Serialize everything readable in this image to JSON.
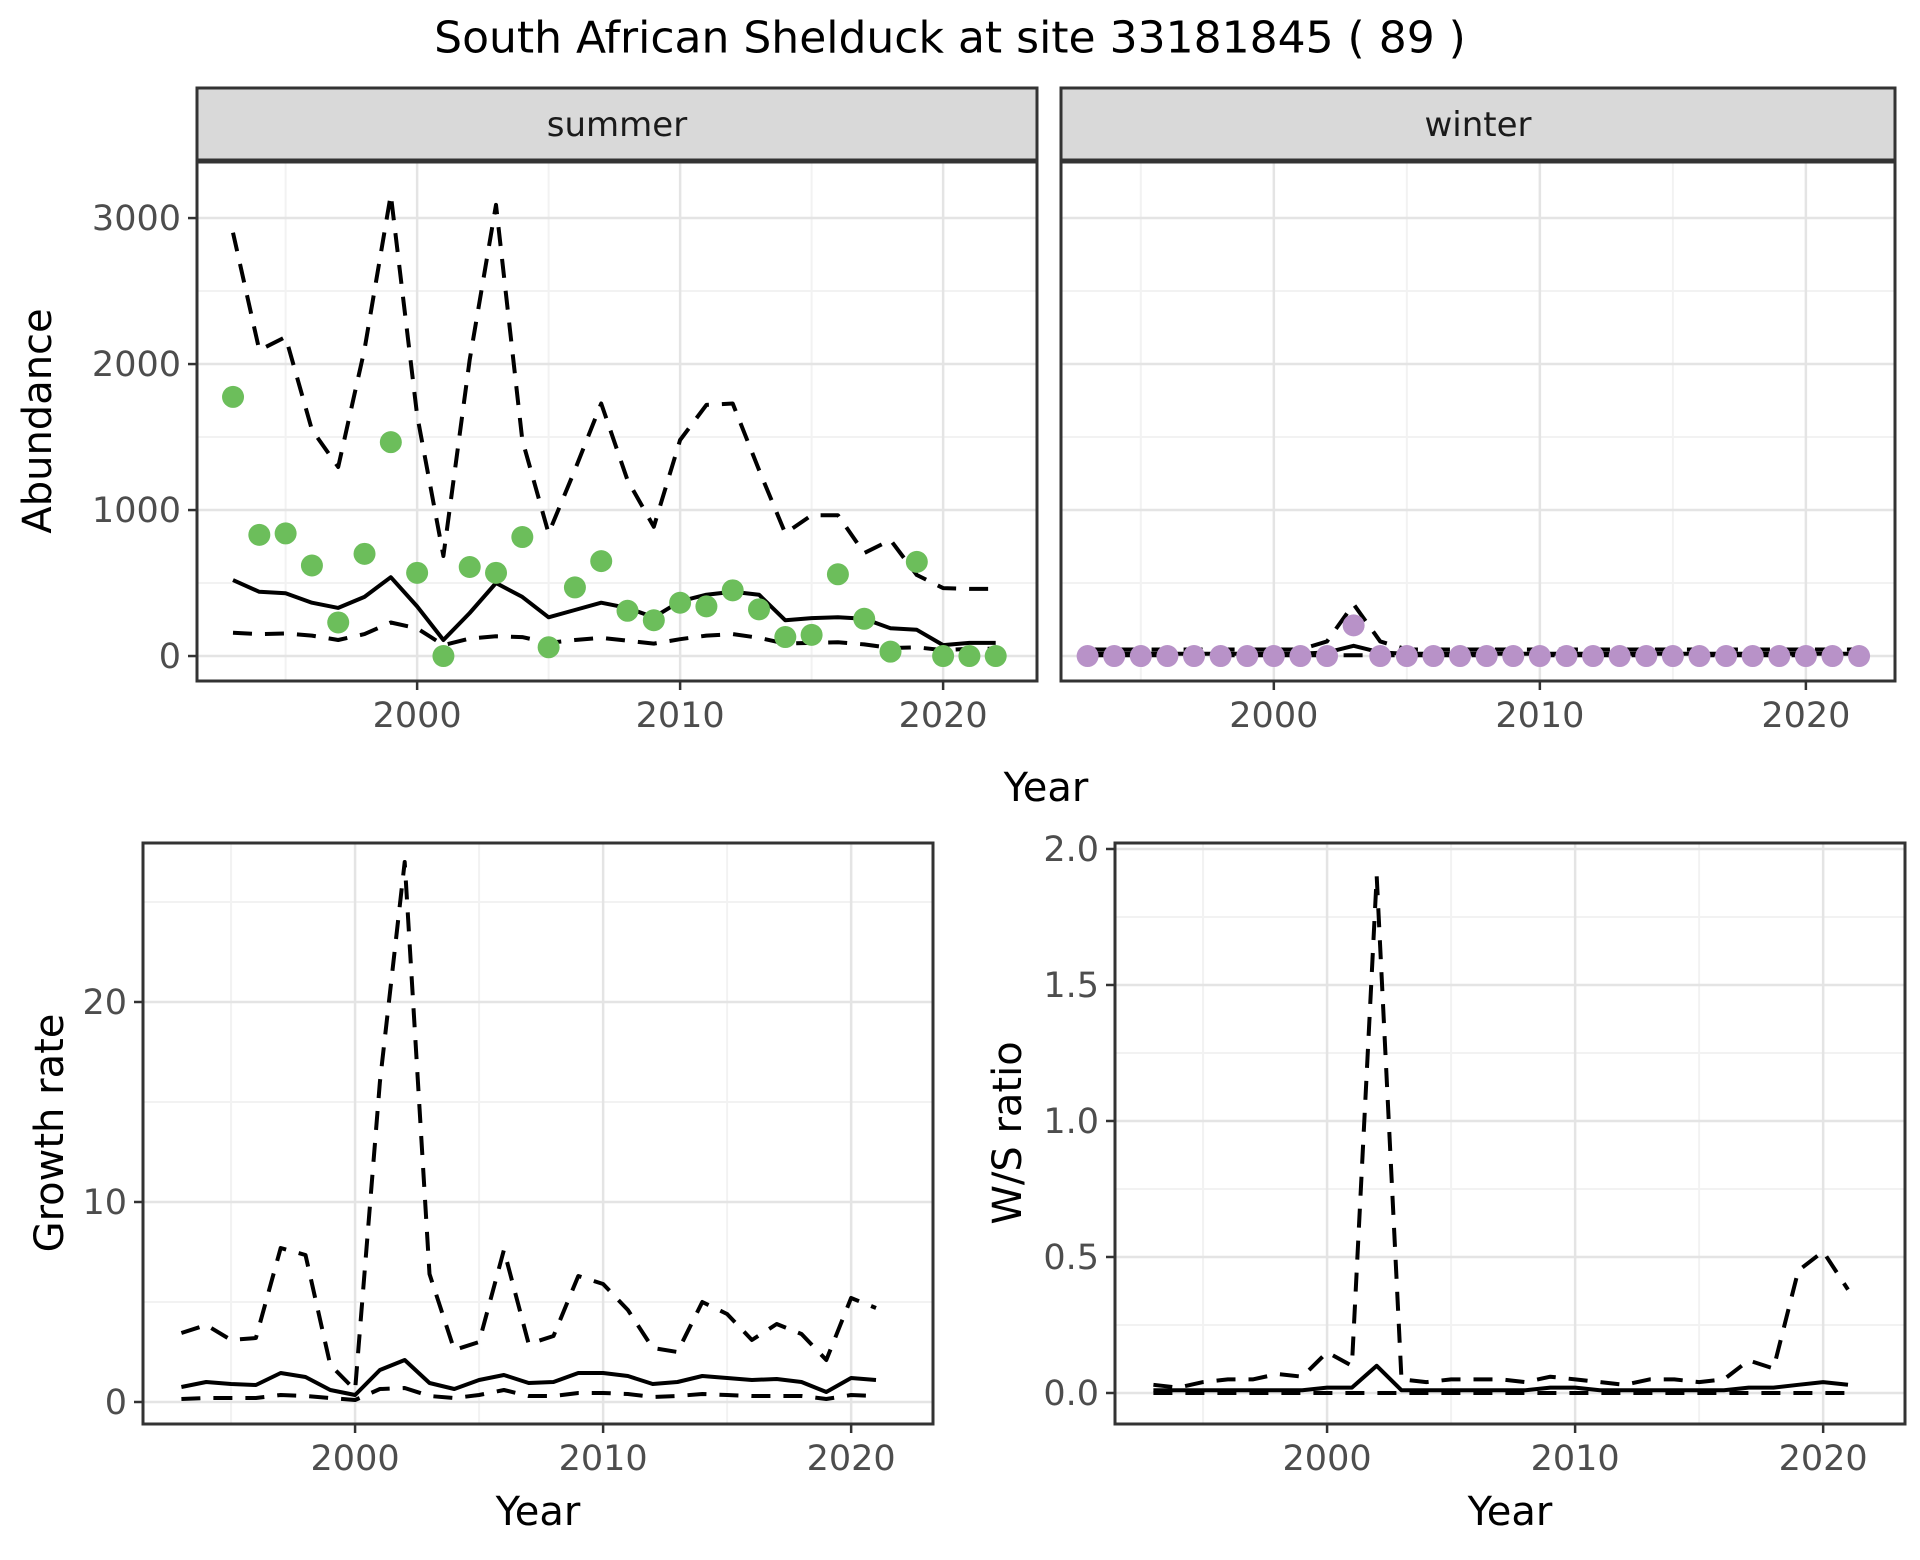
{
  "title": "South African Shelduck at site 33181845 ( 89 )",
  "axis_titles": {
    "abundance": "Abundance",
    "year_top": "Year",
    "growth_rate": "Growth rate",
    "year_bottom_left": "Year",
    "ws_ratio": "W/S ratio",
    "year_bottom_right": "Year"
  },
  "colors": {
    "observed_summer": "#6CBE5B",
    "observed_winter": "#B892C8",
    "line": "#000000",
    "strip_bg": "#D9D9D9",
    "strip_text": "#1A1A1A",
    "grid_major": "#E4E4E4",
    "grid_minor": "#F2F2F2",
    "panel_border": "#333333",
    "tick_label": "#4D4D4D"
  },
  "chart_data": [
    {
      "id": "abundance-summer",
      "type": "line",
      "facet": "summer",
      "xlabel": "Year",
      "ylabel": "Abundance",
      "xlim": [
        1991.63,
        2023.57
      ],
      "ylim": [
        -171,
        3384
      ],
      "xticks": {
        "values": [
          2000,
          2010,
          2020
        ],
        "labels": [
          "2000",
          "2010",
          "2020"
        ]
      },
      "x_minor": [
        1995,
        2005,
        2015
      ],
      "yticks": {
        "values": [
          0,
          1000,
          2000,
          3000
        ],
        "labels": [
          "0",
          "1000",
          "2000",
          "3000"
        ]
      },
      "y_minor": [
        500,
        1500,
        2500
      ],
      "years": [
        1993,
        1994,
        1995,
        1996,
        1997,
        1998,
        1999,
        2000,
        2001,
        2002,
        2003,
        2004,
        2005,
        2006,
        2007,
        2008,
        2009,
        2010,
        2011,
        2012,
        2013,
        2014,
        2015,
        2016,
        2017,
        2018,
        2019,
        2020,
        2021,
        2022
      ],
      "series": [
        {
          "name": "upper-ci",
          "style": "dashed",
          "color_key": "line",
          "values": [
            2900,
            2095,
            2185,
            1550,
            1295,
            2100,
            3160,
            1650,
            685,
            2030,
            3090,
            1480,
            840,
            1275,
            1730,
            1205,
            885,
            1480,
            1720,
            1730,
            1275,
            840,
            965,
            965,
            705,
            795,
            555,
            465,
            460,
            460
          ]
        },
        {
          "name": "lower-ci",
          "style": "dashed",
          "color_key": "line",
          "values": [
            160,
            150,
            155,
            140,
            110,
            150,
            230,
            190,
            75,
            120,
            135,
            130,
            90,
            110,
            125,
            105,
            85,
            115,
            140,
            150,
            125,
            85,
            90,
            95,
            80,
            55,
            60,
            40,
            50,
            50
          ]
        },
        {
          "name": "model-fit",
          "style": "solid",
          "color_key": "line",
          "values": [
            520,
            440,
            430,
            365,
            330,
            405,
            540,
            340,
            110,
            295,
            500,
            405,
            265,
            315,
            365,
            330,
            265,
            375,
            420,
            440,
            420,
            245,
            260,
            265,
            255,
            190,
            180,
            75,
            90,
            90
          ]
        },
        {
          "name": "observed",
          "style": "points",
          "color_key": "observed_summer",
          "values": [
            1775,
            830,
            840,
            620,
            230,
            700,
            1465,
            570,
            0,
            610,
            570,
            815,
            60,
            470,
            650,
            310,
            245,
            365,
            340,
            450,
            320,
            130,
            145,
            560,
            255,
            30,
            645,
            0,
            0,
            0
          ]
        }
      ]
    },
    {
      "id": "abundance-winter",
      "type": "line",
      "facet": "winter",
      "xlabel": "Year",
      "ylabel": "Abundance",
      "xlim": [
        1992.0,
        2023.35
      ],
      "ylim": [
        -171,
        3384
      ],
      "xticks": {
        "values": [
          2000,
          2010,
          2020
        ],
        "labels": [
          "2000",
          "2010",
          "2020"
        ]
      },
      "x_minor": [
        1995,
        2005,
        2015
      ],
      "yticks": {
        "values": [],
        "labels": []
      },
      "y_minor": [
        500,
        1500,
        2500
      ],
      "y_grid_major": [
        0,
        1000,
        2000,
        3000
      ],
      "years": [
        1993,
        1994,
        1995,
        1996,
        1997,
        1998,
        1999,
        2000,
        2001,
        2002,
        2003,
        2004,
        2005,
        2006,
        2007,
        2008,
        2009,
        2010,
        2011,
        2012,
        2013,
        2014,
        2015,
        2016,
        2017,
        2018,
        2019,
        2020,
        2021,
        2022
      ],
      "series": [
        {
          "name": "upper-ci",
          "style": "dashed",
          "color_key": "line",
          "values": [
            45,
            45,
            45,
            45,
            45,
            45,
            45,
            45,
            45,
            100,
            355,
            100,
            45,
            45,
            45,
            45,
            45,
            45,
            45,
            45,
            45,
            45,
            45,
            45,
            45,
            45,
            45,
            45,
            45,
            45
          ]
        },
        {
          "name": "lower-ci",
          "style": "dashed",
          "color_key": "line",
          "values": [
            5,
            5,
            5,
            5,
            5,
            5,
            5,
            5,
            5,
            5,
            5,
            5,
            5,
            5,
            5,
            5,
            5,
            5,
            5,
            5,
            5,
            5,
            5,
            5,
            5,
            5,
            5,
            5,
            5,
            5
          ]
        },
        {
          "name": "model-fit",
          "style": "solid",
          "color_key": "line",
          "values": [
            15,
            15,
            15,
            15,
            15,
            15,
            15,
            15,
            15,
            25,
            70,
            25,
            15,
            15,
            15,
            15,
            15,
            15,
            15,
            15,
            15,
            15,
            15,
            15,
            15,
            15,
            15,
            15,
            15,
            15
          ]
        },
        {
          "name": "observed",
          "style": "points",
          "color_key": "observed_winter",
          "values": [
            0,
            0,
            0,
            0,
            0,
            0,
            0,
            0,
            0,
            0,
            210,
            0,
            0,
            0,
            0,
            0,
            0,
            0,
            0,
            0,
            0,
            0,
            0,
            0,
            0,
            0,
            0,
            0,
            0,
            0
          ]
        }
      ]
    },
    {
      "id": "growth-rate",
      "type": "line",
      "facet": "",
      "xlabel": "Year",
      "ylabel": "Growth rate",
      "xlim": [
        1991.45,
        2023.3
      ],
      "ylim": [
        -1.1,
        27.95
      ],
      "xticks": {
        "values": [
          2000,
          2010,
          2020
        ],
        "labels": [
          "2000",
          "2010",
          "2020"
        ]
      },
      "x_minor": [
        1995,
        2005,
        2015
      ],
      "yticks": {
        "values": [
          0,
          10,
          20
        ],
        "labels": [
          "0",
          "10",
          "20"
        ]
      },
      "y_minor": [
        5,
        15,
        25
      ],
      "years": [
        1993,
        1994,
        1995,
        1996,
        1997,
        1998,
        1999,
        2000,
        2001,
        2002,
        2003,
        2004,
        2005,
        2006,
        2007,
        2008,
        2009,
        2010,
        2011,
        2012,
        2013,
        2014,
        2015,
        2016,
        2017,
        2018,
        2019,
        2020,
        2021
      ],
      "series": [
        {
          "name": "upper-ci",
          "style": "dashed",
          "color_key": "line",
          "values": [
            3.45,
            3.85,
            3.1,
            3.2,
            7.7,
            7.35,
            1.85,
            0.6,
            16.0,
            27.0,
            6.4,
            2.6,
            3.0,
            7.6,
            2.9,
            3.3,
            6.3,
            5.9,
            4.6,
            2.7,
            2.5,
            5.0,
            4.4,
            3.1,
            3.9,
            3.4,
            2.1,
            5.2,
            4.7
          ]
        },
        {
          "name": "lower-ci",
          "style": "dashed",
          "color_key": "line",
          "values": [
            0.15,
            0.2,
            0.2,
            0.2,
            0.35,
            0.3,
            0.2,
            0.1,
            0.65,
            0.7,
            0.3,
            0.2,
            0.35,
            0.6,
            0.3,
            0.3,
            0.45,
            0.45,
            0.4,
            0.25,
            0.3,
            0.4,
            0.35,
            0.3,
            0.3,
            0.3,
            0.15,
            0.35,
            0.3
          ]
        },
        {
          "name": "model-fit",
          "style": "solid",
          "color_key": "line",
          "values": [
            0.75,
            1.0,
            0.9,
            0.85,
            1.45,
            1.25,
            0.6,
            0.35,
            1.6,
            2.1,
            0.95,
            0.65,
            1.1,
            1.35,
            0.95,
            1.0,
            1.45,
            1.45,
            1.3,
            0.9,
            1.0,
            1.3,
            1.2,
            1.1,
            1.15,
            1.0,
            0.5,
            1.2,
            1.1
          ]
        }
      ]
    },
    {
      "id": "ws-ratio",
      "type": "line",
      "facet": "",
      "xlabel": "Year",
      "ylabel": "W/S ratio",
      "xlim": [
        1991.45,
        2023.3
      ],
      "ylim": [
        -0.114,
        2.022
      ],
      "xticks": {
        "values": [
          2000,
          2010,
          2020
        ],
        "labels": [
          "2000",
          "2010",
          "2020"
        ]
      },
      "x_minor": [
        1995,
        2005,
        2015
      ],
      "yticks": {
        "values": [
          0.0,
          0.5,
          1.0,
          1.5,
          2.0
        ],
        "labels": [
          "0.0",
          "0.5",
          "1.0",
          "1.5",
          "2.0"
        ]
      },
      "y_minor": [
        0.25,
        0.75,
        1.25,
        1.75
      ],
      "years": [
        1993,
        1994,
        1995,
        1996,
        1997,
        1998,
        1999,
        2000,
        2001,
        2002,
        2003,
        2004,
        2005,
        2006,
        2007,
        2008,
        2009,
        2010,
        2011,
        2012,
        2013,
        2014,
        2015,
        2016,
        2017,
        2018,
        2019,
        2020,
        2021
      ],
      "series": [
        {
          "name": "upper-ci",
          "style": "dashed",
          "color_key": "line",
          "values": [
            0.03,
            0.02,
            0.04,
            0.05,
            0.05,
            0.07,
            0.06,
            0.15,
            0.1,
            1.9,
            0.05,
            0.04,
            0.05,
            0.05,
            0.05,
            0.04,
            0.06,
            0.05,
            0.04,
            0.03,
            0.05,
            0.05,
            0.04,
            0.05,
            0.12,
            0.09,
            0.45,
            0.52,
            0.38
          ]
        },
        {
          "name": "lower-ci",
          "style": "dashed",
          "color_key": "line",
          "values": [
            0,
            0,
            0,
            0,
            0,
            0,
            0,
            0,
            0,
            0,
            0,
            0,
            0,
            0,
            0,
            0,
            0,
            0,
            0,
            0,
            0,
            0,
            0,
            0,
            0,
            0,
            0,
            0,
            0
          ]
        },
        {
          "name": "model-fit",
          "style": "solid",
          "color_key": "line",
          "values": [
            0.01,
            0.01,
            0.01,
            0.01,
            0.01,
            0.01,
            0.01,
            0.02,
            0.02,
            0.1,
            0.01,
            0.01,
            0.01,
            0.01,
            0.01,
            0.01,
            0.02,
            0.02,
            0.01,
            0.01,
            0.01,
            0.01,
            0.01,
            0.01,
            0.02,
            0.02,
            0.03,
            0.04,
            0.03
          ]
        }
      ]
    }
  ]
}
